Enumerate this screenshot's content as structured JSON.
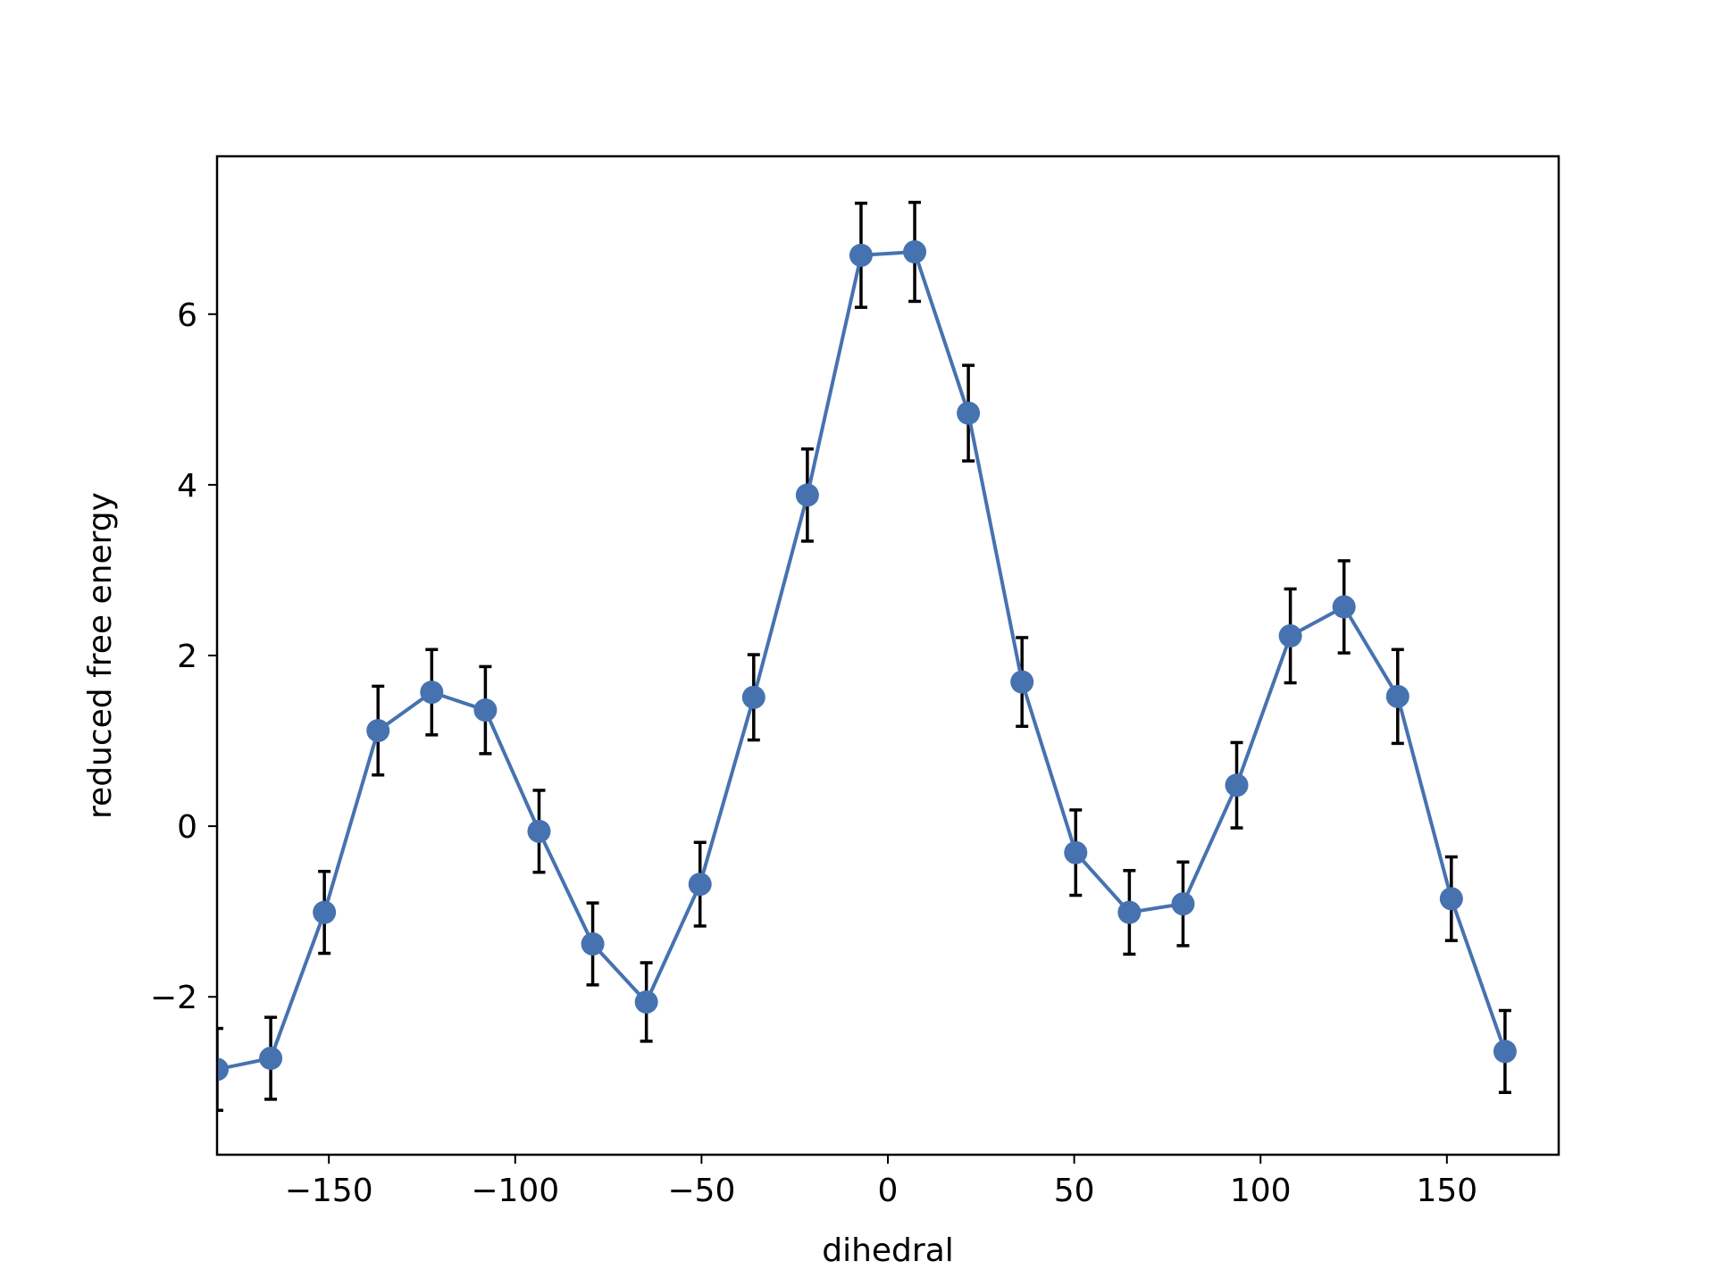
{
  "chart_data": {
    "type": "line",
    "title": "",
    "xlabel": "dihedral",
    "ylabel": "reduced free energy",
    "xlim": [
      -180,
      180
    ],
    "ylim": [
      -3.85,
      7.85
    ],
    "xticks": [
      -150,
      -100,
      -50,
      0,
      50,
      100,
      150
    ],
    "xtick_labels": [
      "−150",
      "−100",
      "−50",
      "0",
      "50",
      "100",
      "150"
    ],
    "yticks": [
      -2,
      0,
      2,
      4,
      6
    ],
    "ytick_labels": [
      "−2",
      "0",
      "2",
      "4",
      "6"
    ],
    "grid": false,
    "legend": "none",
    "colors": {
      "line": "#4672b0",
      "marker": "#4672b0",
      "errorbar": "#000000"
    },
    "series": [
      {
        "x": [
          -180,
          -165.6,
          -151.2,
          -136.8,
          -122.4,
          -108.0,
          -93.6,
          -79.2,
          -64.8,
          -50.4,
          -36.0,
          -21.6,
          -7.2,
          7.2,
          21.6,
          36.0,
          50.4,
          64.8,
          79.2,
          93.6,
          108.0,
          122.4,
          136.8,
          151.2,
          165.6
        ],
        "values": [
          -2.85,
          -2.72,
          -1.01,
          1.12,
          1.57,
          1.36,
          -0.06,
          -1.38,
          -2.06,
          -0.68,
          1.51,
          3.88,
          6.69,
          6.73,
          4.84,
          1.69,
          -0.31,
          -1.01,
          -0.91,
          0.48,
          2.23,
          2.57,
          1.52,
          -0.85,
          -2.64
        ],
        "errors": [
          0.48,
          0.48,
          0.48,
          0.52,
          0.5,
          0.51,
          0.48,
          0.48,
          0.46,
          0.49,
          0.5,
          0.54,
          0.61,
          0.58,
          0.56,
          0.52,
          0.5,
          0.49,
          0.49,
          0.5,
          0.55,
          0.54,
          0.55,
          0.49,
          0.48
        ]
      }
    ]
  }
}
